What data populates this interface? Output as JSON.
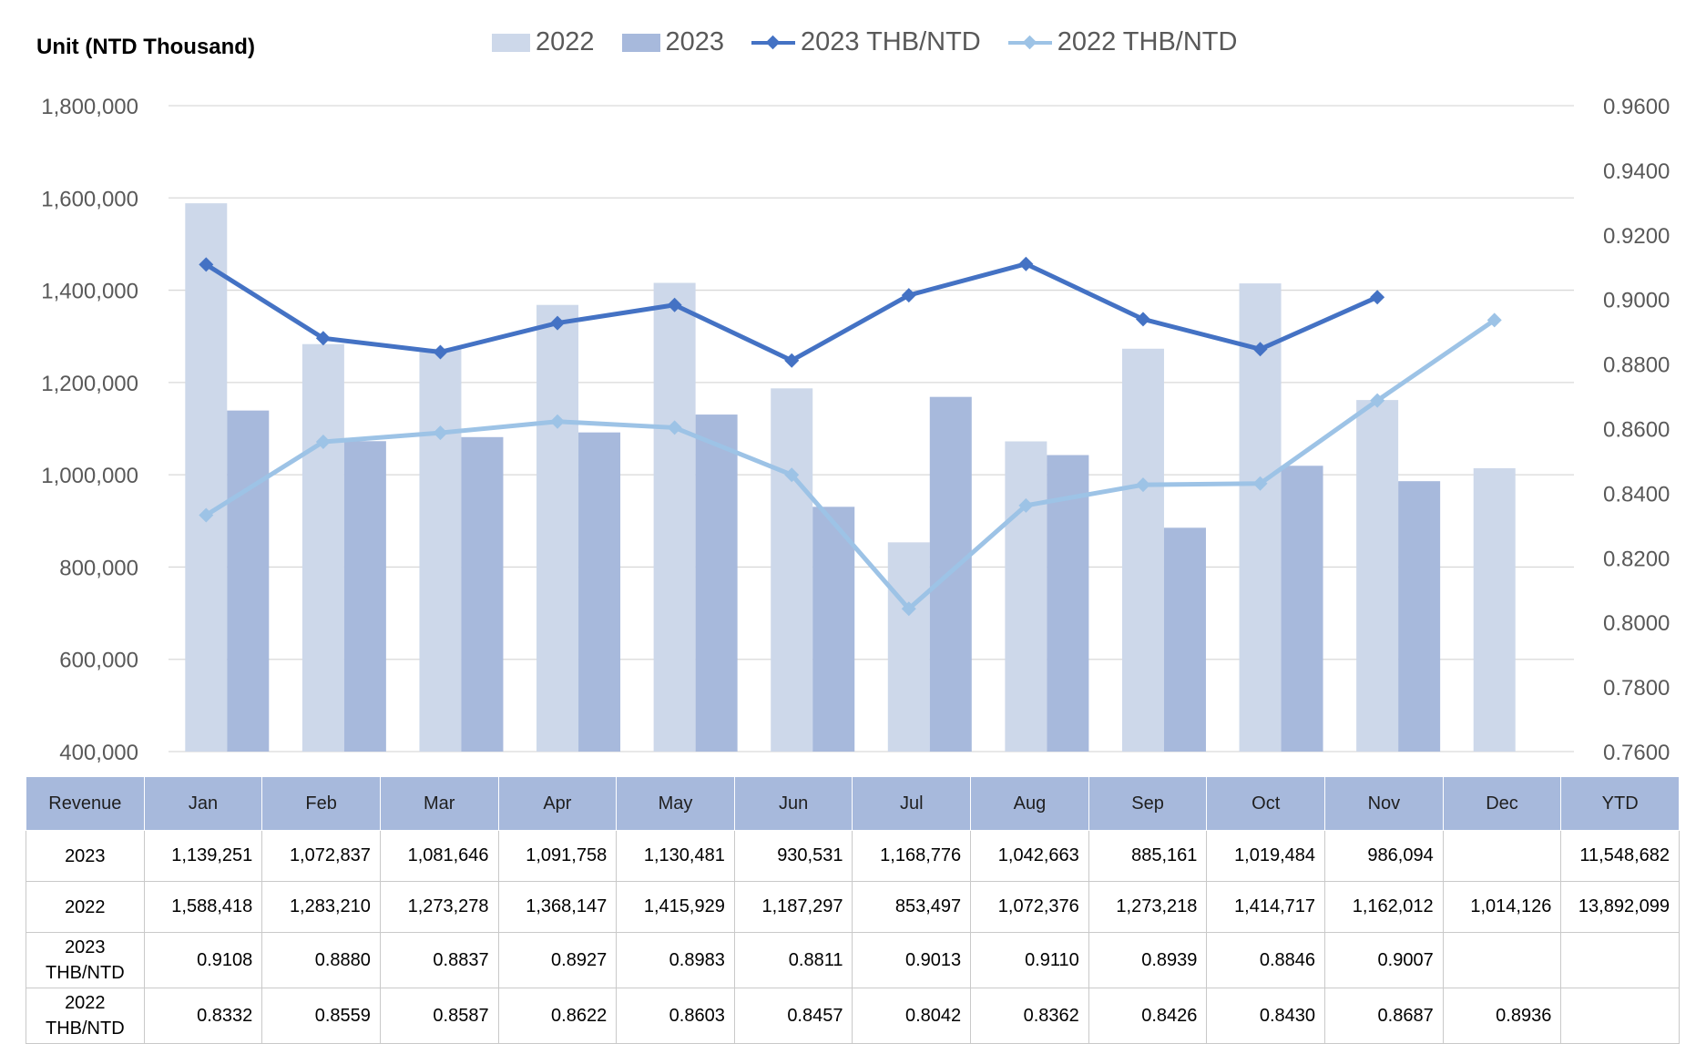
{
  "unit_label": "Unit (NTD  Thousand)",
  "colors": {
    "bar_2022": "#cdd8ea",
    "bar_2023": "#a7b9dc",
    "line_2023": "#4472c4",
    "line_2022": "#9dc3e6",
    "grid": "#d9d9d9",
    "table_header": "#a7b9dc"
  },
  "chart_data": {
    "type": "bar",
    "categories": [
      "Jan",
      "Feb",
      "Mar",
      "Apr",
      "May",
      "Jun",
      "Jul",
      "Aug",
      "Sep",
      "Oct",
      "Nov",
      "Dec"
    ],
    "series": [
      {
        "name": "2022",
        "type": "bar",
        "axis": "left",
        "values": [
          1588418,
          1283210,
          1273278,
          1368147,
          1415929,
          1187297,
          853497,
          1072376,
          1273218,
          1414717,
          1162012,
          1014126
        ]
      },
      {
        "name": "2023",
        "type": "bar",
        "axis": "left",
        "values": [
          1139251,
          1072837,
          1081646,
          1091758,
          1130481,
          930531,
          1168776,
          1042663,
          885161,
          1019484,
          986094,
          null
        ]
      },
      {
        "name": "2023 THB/NTD",
        "type": "line",
        "axis": "right",
        "values": [
          0.9108,
          0.888,
          0.8837,
          0.8927,
          0.8983,
          0.8811,
          0.9013,
          0.911,
          0.8939,
          0.8846,
          0.9007,
          null
        ]
      },
      {
        "name": "2022 THB/NTD",
        "type": "line",
        "axis": "right",
        "values": [
          0.8332,
          0.8559,
          0.8587,
          0.8622,
          0.8603,
          0.8457,
          0.8042,
          0.8362,
          0.8426,
          0.843,
          0.8687,
          0.8936
        ]
      }
    ],
    "left_axis": {
      "min": 400000,
      "max": 1800000,
      "step": 200000,
      "tick_labels": [
        "400,000",
        "600,000",
        "800,000",
        "1,000,000",
        "1,200,000",
        "1,400,000",
        "1,600,000",
        "1,800,000"
      ]
    },
    "right_axis": {
      "min": 0.76,
      "max": 0.96,
      "step": 0.02,
      "tick_labels": [
        "0.7600",
        "0.7800",
        "0.8000",
        "0.8200",
        "0.8400",
        "0.8600",
        "0.8800",
        "0.9000",
        "0.9200",
        "0.9400",
        "0.9600"
      ]
    },
    "legend_position": "top",
    "grid": true
  },
  "table": {
    "headers": [
      "Revenue",
      "Jan",
      "Feb",
      "Mar",
      "Apr",
      "May",
      "Jun",
      "Jul",
      "Aug",
      "Sep",
      "Oct",
      "Nov",
      "Dec",
      "YTD"
    ],
    "rows": [
      {
        "label": "2023",
        "values": [
          "1,139,251",
          "1,072,837",
          "1,081,646",
          "1,091,758",
          "1,130,481",
          "930,531",
          "1,168,776",
          "1,042,663",
          "885,161",
          "1,019,484",
          "986,094",
          "",
          "11,548,682"
        ]
      },
      {
        "label": "2022",
        "values": [
          "1,588,418",
          "1,283,210",
          "1,273,278",
          "1,368,147",
          "1,415,929",
          "1,187,297",
          "853,497",
          "1,072,376",
          "1,273,218",
          "1,414,717",
          "1,162,012",
          "1,014,126",
          "13,892,099"
        ]
      },
      {
        "label": "2023 THB/NTD",
        "values": [
          "0.9108",
          "0.8880",
          "0.8837",
          "0.8927",
          "0.8983",
          "0.8811",
          "0.9013",
          "0.9110",
          "0.8939",
          "0.8846",
          "0.9007",
          "",
          ""
        ]
      },
      {
        "label": "2022 THB/NTD",
        "values": [
          "0.8332",
          "0.8559",
          "0.8587",
          "0.8622",
          "0.8603",
          "0.8457",
          "0.8042",
          "0.8362",
          "0.8426",
          "0.8430",
          "0.8687",
          "0.8936",
          ""
        ]
      }
    ]
  }
}
